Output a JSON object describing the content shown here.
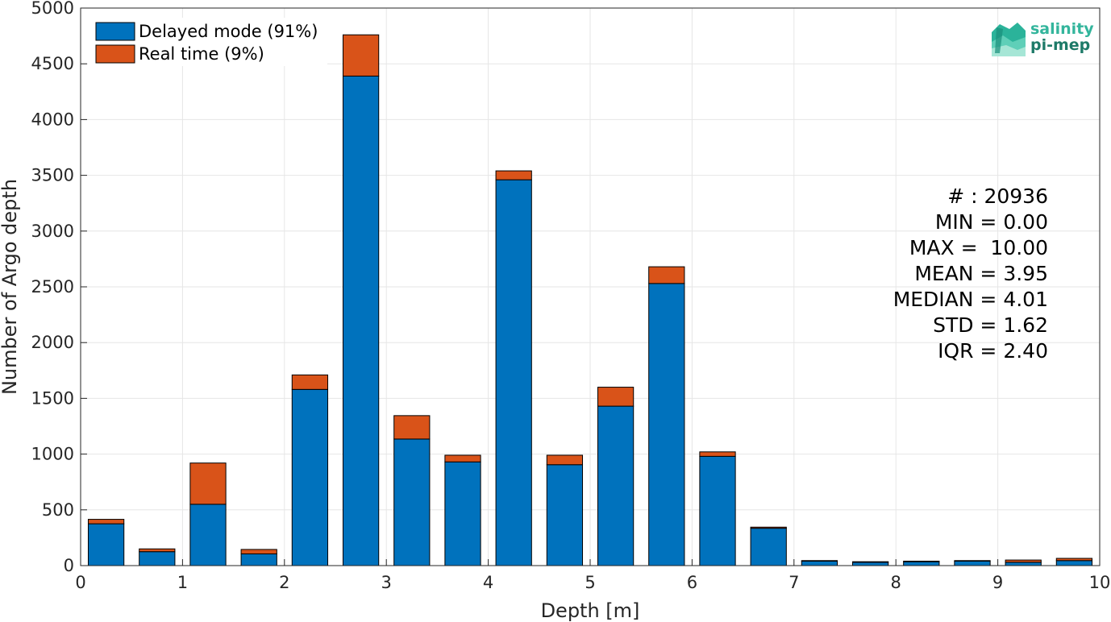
{
  "chart_data": {
    "type": "bar",
    "stacked": true,
    "xlabel": "Depth [m]",
    "ylabel": "Number of Argo depth",
    "xlim": [
      0,
      10
    ],
    "ylim": [
      0,
      5000
    ],
    "xticks": [
      0,
      1,
      2,
      3,
      4,
      5,
      6,
      7,
      8,
      9,
      10
    ],
    "yticks": [
      0,
      500,
      1000,
      1500,
      2000,
      2500,
      3000,
      3500,
      4000,
      4500,
      5000
    ],
    "grid": true,
    "bin_width": 0.5,
    "x": [
      0.25,
      0.75,
      1.25,
      1.75,
      2.25,
      2.75,
      3.25,
      3.75,
      4.25,
      4.75,
      5.25,
      5.75,
      6.25,
      6.75,
      7.25,
      7.75,
      8.25,
      8.75,
      9.25,
      9.75
    ],
    "series": [
      {
        "name": "Delayed mode (91%)",
        "color": "#0072BD",
        "values": [
          375,
          125,
          550,
          105,
          1580,
          4390,
          1135,
          930,
          3460,
          905,
          1430,
          2530,
          980,
          335,
          40,
          30,
          35,
          40,
          30,
          45
        ]
      },
      {
        "name": "Real time (9%)",
        "color": "#D95319",
        "values": [
          40,
          25,
          370,
          40,
          130,
          370,
          210,
          60,
          80,
          85,
          170,
          150,
          40,
          10,
          5,
          5,
          5,
          5,
          20,
          20
        ]
      }
    ],
    "legend_position": "top-left",
    "stats": [
      "# : 20936",
      "MIN = 0.00",
      "MAX =  10.00",
      "MEAN = 3.95",
      "MEDIAN = 4.01",
      "STD = 1.62",
      "IQR = 2.40"
    ]
  },
  "logo": {
    "line1": "salinity",
    "line2": "pi-mep"
  }
}
